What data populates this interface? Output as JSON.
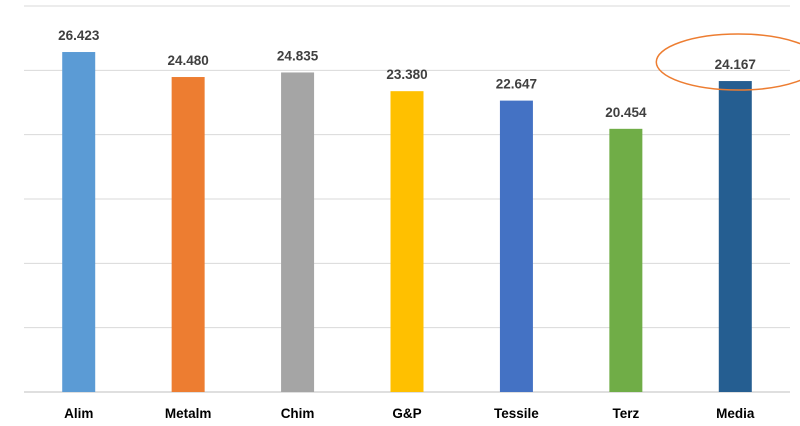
{
  "chart_data": {
    "type": "bar",
    "categories": [
      "Alim",
      "Metalm",
      "Chim",
      "G&P",
      "Tessile",
      "Terz",
      "Media"
    ],
    "values": [
      26.423,
      24.48,
      24.835,
      23.38,
      22.647,
      20.454,
      24.167
    ],
    "value_labels": [
      "26.423",
      "24.480",
      "24.835",
      "23.380",
      "22.647",
      "20.454",
      "24.167"
    ],
    "colors": [
      "#5B9BD5",
      "#ED7D31",
      "#A5A5A5",
      "#FFC000",
      "#4472C4",
      "#70AD47",
      "#255E91"
    ],
    "ylim": [
      0,
      30
    ],
    "gridlines": true,
    "legend": "none",
    "highlighted_category": "Media",
    "highlight_color": "#ED7D31",
    "title": "",
    "xlabel": "",
    "ylabel": ""
  }
}
